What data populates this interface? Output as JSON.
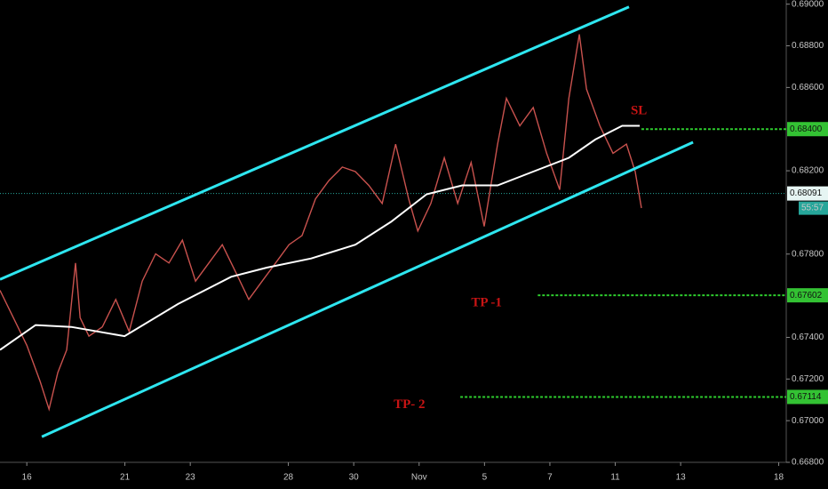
{
  "chart_data": {
    "type": "line",
    "xlim": [
      -0.82,
      23.23
    ],
    "xticks": [
      {
        "value": 0,
        "label": "16"
      },
      {
        "value": 3,
        "label": "21"
      },
      {
        "value": 5,
        "label": "23"
      },
      {
        "value": 8,
        "label": "28"
      },
      {
        "value": 10,
        "label": "30"
      },
      {
        "value": 12,
        "label": "Nov"
      },
      {
        "value": 14,
        "label": "5"
      },
      {
        "value": 16,
        "label": "7"
      },
      {
        "value": 18,
        "label": "11"
      },
      {
        "value": 20,
        "label": "13"
      },
      {
        "value": 23,
        "label": "18"
      }
    ],
    "ylim": [
      0.668,
      0.6902
    ],
    "yticks": [
      {
        "value": 0.668,
        "label": "0.66800"
      },
      {
        "value": 0.67,
        "label": "0.67000"
      },
      {
        "value": 0.672,
        "label": "0.67200"
      },
      {
        "value": 0.674,
        "label": "0.67400"
      },
      {
        "value": 0.678,
        "label": "0.67800"
      },
      {
        "value": 0.682,
        "label": "0.68200"
      },
      {
        "value": 0.686,
        "label": "0.68600"
      },
      {
        "value": 0.688,
        "label": "0.68800"
      },
      {
        "value": 0.69,
        "label": "0.69000"
      }
    ],
    "series": [
      {
        "color": "#c9524e",
        "x": [
          -0.82,
          -0.41,
          0,
          0.41,
          0.68,
          0.95,
          1.22,
          1.49,
          1.63,
          1.9,
          2.31,
          2.72,
          3.13,
          3.53,
          3.94,
          4.35,
          4.76,
          5.16,
          5.57,
          5.98,
          6.39,
          6.79,
          7.2,
          7.61,
          8.02,
          8.42,
          8.83,
          9.24,
          9.65,
          10.05,
          10.46,
          10.87,
          11.28,
          11.68,
          11.96,
          12.36,
          12.77,
          13.18,
          13.59,
          13.99,
          14.4,
          14.67,
          15.08,
          15.49,
          15.9,
          16.3,
          16.58,
          16.9,
          17.12,
          17.53,
          17.93,
          18.34,
          18.61,
          18.8
        ],
        "values": [
          0.67626,
          0.67494,
          0.67362,
          0.67187,
          0.67055,
          0.67231,
          0.6734,
          0.67757,
          0.67494,
          0.67406,
          0.6745,
          0.67582,
          0.67428,
          0.6767,
          0.67801,
          0.67757,
          0.67867,
          0.6767,
          0.67757,
          0.67845,
          0.67713,
          0.67582,
          0.6767,
          0.67757,
          0.67845,
          0.67889,
          0.68065,
          0.68153,
          0.68218,
          0.68196,
          0.6813,
          0.68043,
          0.68328,
          0.68065,
          0.67911,
          0.68043,
          0.68262,
          0.68043,
          0.6824,
          0.67933,
          0.68328,
          0.68548,
          0.68416,
          0.68504,
          0.68284,
          0.68109,
          0.68548,
          0.68855,
          0.68592,
          0.68416,
          0.68284,
          0.68328,
          0.68196,
          0.68021
        ]
      },
      {
        "color": "#ffffff",
        "x": [
          -0.82,
          0.27,
          1.36,
          2.99,
          4.62,
          6.25,
          7.34,
          8.7,
          10.05,
          11.14,
          12.23,
          13.32,
          14.4,
          15.49,
          16.58,
          17.39,
          18.21,
          18.75
        ],
        "values": [
          0.6734,
          0.67459,
          0.6745,
          0.67406,
          0.6756,
          0.67691,
          0.67735,
          0.67779,
          0.67845,
          0.67955,
          0.68087,
          0.6813,
          0.6813,
          0.68196,
          0.68262,
          0.6835,
          0.68416,
          0.68416
        ]
      },
      {
        "color": "#2ee6f0",
        "x": [
          -0.82,
          18.42
        ],
        "values": [
          0.67678,
          0.68987
        ]
      },
      {
        "color": "#2ee6f0",
        "x": [
          0.46,
          20.38
        ],
        "values": [
          0.66923,
          0.68337
        ]
      }
    ],
    "levels": [
      {
        "name": "SL",
        "value": 0.684,
        "value_label": "0.68400",
        "x": 18.8
      },
      {
        "name": "TP -1",
        "value": 0.67602,
        "value_label": "0.67602",
        "x": 15.63
      },
      {
        "name": "TP- 2",
        "value": 0.67114,
        "value_label": "0.67114",
        "x": 13.26
      }
    ],
    "current": {
      "value": 0.68091,
      "value_label": "0.68091",
      "countdown": "55:57"
    }
  }
}
